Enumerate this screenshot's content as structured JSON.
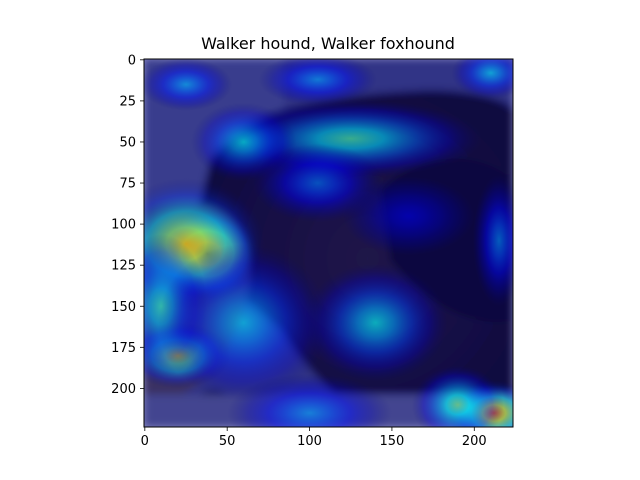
{
  "chart_data": {
    "type": "heatmap",
    "title": "Walker hound, Walker foxhound",
    "xlabel": "",
    "ylabel": "",
    "xlim": [
      -0.5,
      223.5
    ],
    "ylim": [
      223.5,
      -0.5
    ],
    "xticks": [
      0,
      50,
      100,
      150,
      200
    ],
    "yticks": [
      0,
      25,
      50,
      75,
      100,
      125,
      150,
      175,
      200
    ],
    "colormap": "jet",
    "overlay_alpha": 0.5,
    "background": "photo of a dog (head in profile, facing left)",
    "grid": false,
    "legend": "none",
    "hotspots": [
      {
        "x": 38,
        "y": 118,
        "intensity": 1.0,
        "sx": 16,
        "sy": 14
      },
      {
        "x": 25,
        "y": 112,
        "intensity": 0.7,
        "sx": 24,
        "sy": 20
      },
      {
        "x": 20,
        "y": 180,
        "intensity": 0.62,
        "sx": 16,
        "sy": 10
      },
      {
        "x": 212,
        "y": 215,
        "intensity": 0.78,
        "sx": 14,
        "sy": 10
      },
      {
        "x": 190,
        "y": 210,
        "intensity": 0.5,
        "sx": 14,
        "sy": 12
      },
      {
        "x": 125,
        "y": 48,
        "intensity": 0.45,
        "sx": 40,
        "sy": 12
      },
      {
        "x": 60,
        "y": 50,
        "intensity": 0.38,
        "sx": 16,
        "sy": 12
      },
      {
        "x": 10,
        "y": 150,
        "intensity": 0.42,
        "sx": 14,
        "sy": 22
      },
      {
        "x": 140,
        "y": 160,
        "intensity": 0.38,
        "sx": 22,
        "sy": 18
      },
      {
        "x": 60,
        "y": 160,
        "intensity": 0.34,
        "sx": 26,
        "sy": 24
      },
      {
        "x": 100,
        "y": 215,
        "intensity": 0.28,
        "sx": 25,
        "sy": 12
      },
      {
        "x": 25,
        "y": 15,
        "intensity": 0.3,
        "sx": 14,
        "sy": 8
      },
      {
        "x": 105,
        "y": 12,
        "intensity": 0.28,
        "sx": 18,
        "sy": 8
      },
      {
        "x": 210,
        "y": 8,
        "intensity": 0.34,
        "sx": 12,
        "sy": 8
      },
      {
        "x": 105,
        "y": 75,
        "intensity": 0.24,
        "sx": 20,
        "sy": 12
      },
      {
        "x": 215,
        "y": 110,
        "intensity": 0.26,
        "sx": 8,
        "sy": 20
      },
      {
        "x": 160,
        "y": 95,
        "intensity": 0.1,
        "sx": 20,
        "sy": 12
      }
    ]
  }
}
